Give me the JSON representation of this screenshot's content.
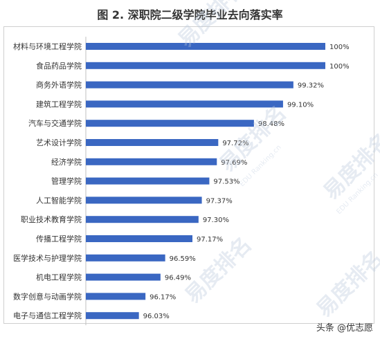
{
  "chart_data": {
    "type": "bar",
    "orientation": "horizontal",
    "title": "图 2. 深职院二级学院毕业去向落实率",
    "categories": [
      "材料与环境工程学院",
      "食品药品学院",
      "商务外语学院",
      "建筑工程学院",
      "汽车与交通学院",
      "艺术设计学院",
      "经济学院",
      "管理学院",
      "人工智能学院",
      "职业技术教育学院",
      "传播工程学院",
      "医学技术与护理学院",
      "机电工程学院",
      "数字创意与动画学院",
      "电子与通信工程学院"
    ],
    "values": [
      100,
      100,
      99.32,
      99.1,
      98.48,
      97.72,
      97.69,
      97.53,
      97.37,
      97.3,
      97.17,
      96.59,
      96.49,
      96.17,
      96.03
    ],
    "value_labels": [
      "100%",
      "100%",
      "99.32%",
      "99.10%",
      "98.48%",
      "97.72%",
      "97.69%",
      "97.53%",
      "97.37%",
      "97.30%",
      "97.17%",
      "96.59%",
      "96.49%",
      "96.17%",
      "96.03%"
    ],
    "xlim": [
      94.9,
      100
    ],
    "bar_color": "#3a67c2",
    "grid": false,
    "legend": false
  },
  "watermark": {
    "text_cn": "易度排名",
    "text_en": "EDU Ranking.cn"
  },
  "footer": {
    "credit": "头条 @优志愿"
  }
}
